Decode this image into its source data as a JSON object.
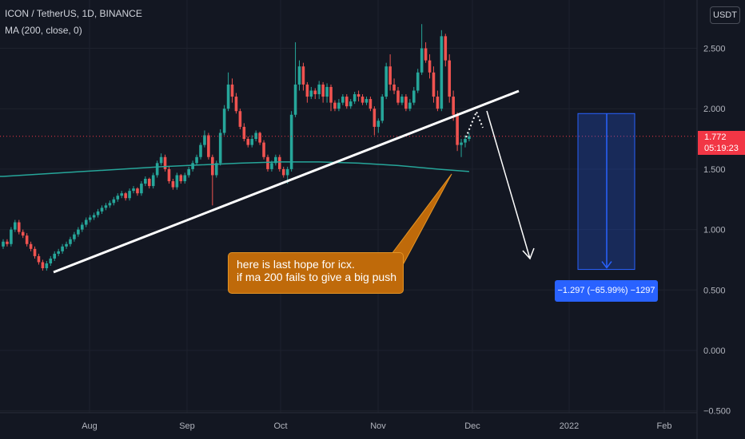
{
  "header": {
    "title": "ICON / TetherUS, 1D, BINANCE",
    "indicator": "MA (200, close, 0)",
    "currency": "USDT"
  },
  "price_badge": {
    "price": "1.772",
    "countdown": "05:19:23"
  },
  "annotation": {
    "line1": "here is last hope for icx.",
    "line2": "if ma 200 fails to give a big push"
  },
  "measure": {
    "label": "−1.297 (−65.99%) −1297",
    "from": 1.96,
    "to": 0.67
  },
  "colors": {
    "up": "#26a69a",
    "down": "#ef5350",
    "ma": "#26a69a",
    "bg": "#131722",
    "grid": "#1e222d"
  },
  "chart_data": {
    "type": "candlestick",
    "x_ticks": [
      "Aug",
      "Sep",
      "Oct",
      "Nov",
      "Dec",
      "2022",
      "Feb"
    ],
    "y_ticks": [
      "2.500",
      "2.000",
      "1.500",
      "1.000",
      "0.500",
      "0.000",
      "−0.500"
    ],
    "ylim": [
      -0.5,
      2.9
    ],
    "last_price": 1.772,
    "series": [
      {
        "type": "candlestick",
        "values": [
          [
            0.86,
            0.9
          ],
          [
            0.9,
            0.88
          ],
          [
            0.88,
            1.0
          ],
          [
            1.0,
            1.06
          ],
          [
            1.06,
            0.98
          ],
          [
            0.98,
            0.95
          ],
          [
            0.95,
            0.88
          ],
          [
            0.88,
            0.84
          ],
          [
            0.84,
            0.78
          ],
          [
            0.78,
            0.73
          ],
          [
            0.73,
            0.68
          ],
          [
            0.68,
            0.72
          ],
          [
            0.72,
            0.76
          ],
          [
            0.76,
            0.8
          ],
          [
            0.8,
            0.82
          ],
          [
            0.82,
            0.86
          ],
          [
            0.86,
            0.88
          ],
          [
            0.88,
            0.92
          ],
          [
            0.92,
            0.96
          ],
          [
            0.96,
            1.0
          ],
          [
            1.0,
            1.04
          ],
          [
            1.04,
            1.08
          ],
          [
            1.08,
            1.1
          ],
          [
            1.1,
            1.12
          ],
          [
            1.12,
            1.15
          ],
          [
            1.15,
            1.18
          ],
          [
            1.18,
            1.2
          ],
          [
            1.2,
            1.22
          ],
          [
            1.22,
            1.25
          ],
          [
            1.25,
            1.28
          ],
          [
            1.28,
            1.3
          ],
          [
            1.3,
            1.26
          ],
          [
            1.26,
            1.32
          ],
          [
            1.32,
            1.34
          ],
          [
            1.34,
            1.3
          ],
          [
            1.3,
            1.38
          ],
          [
            1.38,
            1.42
          ],
          [
            1.42,
            1.36
          ],
          [
            1.36,
            1.45
          ],
          [
            1.45,
            1.55
          ],
          [
            1.55,
            1.6
          ],
          [
            1.6,
            1.5
          ],
          [
            1.5,
            1.4
          ],
          [
            1.4,
            1.35
          ],
          [
            1.35,
            1.45
          ],
          [
            1.45,
            1.4
          ],
          [
            1.4,
            1.45
          ],
          [
            1.45,
            1.5
          ],
          [
            1.5,
            1.55
          ],
          [
            1.55,
            1.6
          ],
          [
            1.6,
            1.7
          ],
          [
            1.7,
            1.78
          ],
          [
            1.78,
            1.6
          ],
          [
            1.6,
            1.45
          ],
          [
            1.45,
            1.55
          ],
          [
            1.55,
            1.8
          ],
          [
            1.8,
            2.0
          ],
          [
            2.0,
            2.2
          ],
          [
            2.2,
            2.1
          ],
          [
            2.1,
            1.98
          ],
          [
            1.98,
            1.85
          ],
          [
            1.85,
            1.75
          ],
          [
            1.75,
            1.7
          ],
          [
            1.7,
            1.75
          ],
          [
            1.75,
            1.8
          ],
          [
            1.8,
            1.72
          ],
          [
            1.72,
            1.6
          ],
          [
            1.6,
            1.5
          ],
          [
            1.5,
            1.55
          ],
          [
            1.55,
            1.6
          ],
          [
            1.6,
            1.5
          ],
          [
            1.5,
            1.45
          ],
          [
            1.45,
            1.5
          ],
          [
            1.5,
            1.95
          ],
          [
            1.95,
            2.2
          ],
          [
            2.2,
            2.35
          ],
          [
            2.35,
            2.2
          ],
          [
            2.2,
            2.1
          ],
          [
            2.1,
            2.15
          ],
          [
            2.15,
            2.12
          ],
          [
            2.12,
            2.2
          ],
          [
            2.2,
            2.1
          ],
          [
            2.1,
            2.18
          ],
          [
            2.18,
            2.05
          ],
          [
            2.05,
            2.0
          ],
          [
            2.0,
            2.05
          ],
          [
            2.05,
            2.1
          ],
          [
            2.1,
            2.02
          ],
          [
            2.02,
            2.06
          ],
          [
            2.06,
            2.12
          ],
          [
            2.12,
            2.1
          ],
          [
            2.1,
            2.05
          ],
          [
            2.05,
            2.08
          ],
          [
            2.08,
            2.0
          ],
          [
            2.0,
            1.85
          ],
          [
            1.85,
            1.9
          ],
          [
            1.9,
            2.1
          ],
          [
            2.1,
            2.35
          ],
          [
            2.35,
            2.2
          ],
          [
            2.2,
            2.15
          ],
          [
            2.15,
            2.05
          ],
          [
            2.05,
            2.1
          ],
          [
            2.1,
            2.0
          ],
          [
            2.0,
            2.05
          ],
          [
            2.05,
            2.15
          ],
          [
            2.15,
            2.3
          ],
          [
            2.3,
            2.5
          ],
          [
            2.5,
            2.4
          ],
          [
            2.4,
            2.3
          ],
          [
            2.3,
            2.1
          ],
          [
            2.1,
            2.0
          ],
          [
            2.0,
            2.6
          ],
          [
            2.6,
            2.4
          ],
          [
            2.4,
            2.1
          ],
          [
            2.1,
            1.95
          ],
          [
            1.95,
            1.7
          ],
          [
            1.7,
            1.72
          ],
          [
            1.72,
            1.75
          ],
          [
            1.75,
            1.772
          ]
        ],
        "highs": [
          0.92,
          0.92,
          1.02,
          1.08,
          1.08,
          1.0,
          0.97,
          0.9,
          0.86,
          0.8,
          0.75,
          0.74,
          0.78,
          0.82,
          0.84,
          0.88,
          0.9,
          0.94,
          0.98,
          1.02,
          1.06,
          1.1,
          1.12,
          1.14,
          1.17,
          1.2,
          1.22,
          1.24,
          1.27,
          1.3,
          1.32,
          1.31,
          1.34,
          1.36,
          1.35,
          1.4,
          1.44,
          1.43,
          1.47,
          1.57,
          1.63,
          1.62,
          1.52,
          1.42,
          1.47,
          1.46,
          1.47,
          1.52,
          1.57,
          1.62,
          1.72,
          1.82,
          1.8,
          1.62,
          1.57,
          1.83,
          2.03,
          2.3,
          2.25,
          2.13,
          2.0,
          1.88,
          1.77,
          1.78,
          1.82,
          1.81,
          1.74,
          1.62,
          1.57,
          1.62,
          1.62,
          1.52,
          1.52,
          1.98,
          2.55,
          2.4,
          2.38,
          2.22,
          2.18,
          2.17,
          2.23,
          2.22,
          2.21,
          2.2,
          2.07,
          2.08,
          2.12,
          2.12,
          2.08,
          2.14,
          2.15,
          2.12,
          2.1,
          2.1,
          2.02,
          1.92,
          2.12,
          2.38,
          2.45,
          2.25,
          2.18,
          2.12,
          2.12,
          2.08,
          2.18,
          2.33,
          2.7,
          2.55,
          2.45,
          2.35,
          2.15,
          2.65,
          2.62,
          2.45,
          2.15,
          1.97,
          1.75,
          1.78,
          1.8,
          1.78
        ],
        "lows": [
          0.84,
          0.86,
          0.86,
          0.98,
          0.96,
          0.93,
          0.86,
          0.82,
          0.76,
          0.71,
          0.66,
          0.66,
          0.7,
          0.74,
          0.78,
          0.8,
          0.84,
          0.86,
          0.9,
          0.94,
          0.98,
          1.02,
          1.06,
          1.08,
          1.1,
          1.13,
          1.16,
          1.18,
          1.2,
          1.23,
          1.26,
          1.24,
          1.24,
          1.3,
          1.28,
          1.28,
          1.36,
          1.34,
          1.34,
          1.43,
          1.53,
          1.48,
          1.38,
          1.33,
          1.33,
          1.38,
          1.38,
          1.43,
          1.48,
          1.53,
          1.58,
          1.68,
          1.58,
          1.2,
          1.43,
          1.53,
          1.78,
          1.98,
          2.05,
          1.96,
          1.83,
          1.73,
          1.68,
          1.68,
          1.73,
          1.7,
          1.58,
          1.48,
          1.48,
          1.53,
          1.48,
          1.43,
          1.38,
          1.48,
          1.93,
          2.15,
          2.15,
          2.05,
          2.08,
          2.08,
          2.08,
          2.05,
          2.05,
          1.98,
          1.98,
          1.98,
          2.03,
          2.0,
          2.0,
          2.04,
          2.06,
          2.03,
          2.03,
          1.98,
          1.78,
          1.8,
          1.88,
          2.08,
          2.15,
          2.12,
          2.03,
          2.03,
          1.98,
          1.98,
          2.03,
          2.13,
          2.28,
          2.38,
          2.25,
          2.05,
          1.98,
          1.98,
          2.35,
          2.05,
          1.9,
          1.65,
          1.6,
          1.68,
          1.73,
          1.74
        ]
      },
      {
        "type": "line",
        "x": [
          0,
          20,
          40,
          60,
          70,
          80,
          90,
          100,
          110,
          118
        ],
        "values": [
          1.44,
          1.48,
          1.52,
          1.55,
          1.56,
          1.56,
          1.55,
          1.53,
          1.5,
          1.48
        ]
      }
    ]
  }
}
